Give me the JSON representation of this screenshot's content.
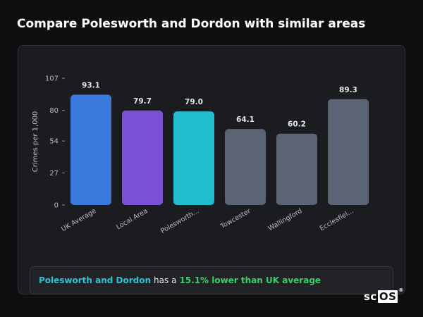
{
  "title": "Compare Polesworth and Dordon with similar areas",
  "summary": {
    "area": "Polesworth and Dordon",
    "middle": "has a",
    "difference": "15.1% lower than UK average"
  },
  "brand": {
    "prefix": "sc",
    "boxed": "OS",
    "mark": "®"
  },
  "chart_data": {
    "type": "bar",
    "title": "",
    "xlabel": "",
    "ylabel": "Crimes per 1,000",
    "ylim": [
      0,
      107
    ],
    "yticks": [
      0,
      27,
      54,
      80,
      107
    ],
    "grid": false,
    "categories": [
      "UK Average",
      "Local Area",
      "Polesworth...",
      "Towcester",
      "Wallingford",
      "Ecclesfiel..."
    ],
    "values": [
      93.1,
      79.7,
      79.0,
      64.1,
      60.2,
      89.3
    ],
    "value_labels": [
      "93.1",
      "79.7",
      "79.0",
      "64.1",
      "60.2",
      "89.3"
    ],
    "colors": [
      "#3a78dc",
      "#7b4fd6",
      "#22bcd0",
      "#5a6474",
      "#5a6474",
      "#5a6474"
    ]
  }
}
